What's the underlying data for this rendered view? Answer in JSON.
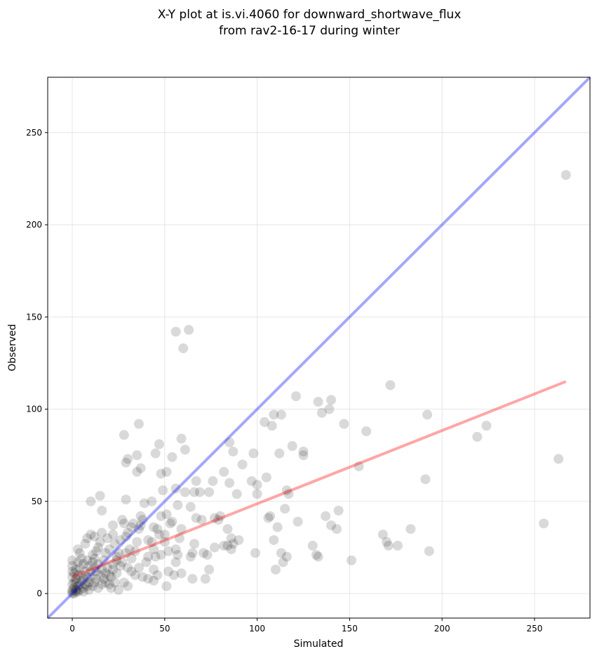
{
  "chart_data": {
    "type": "scatter",
    "title": [
      "X-Y plot at is.vi.4060 for downward_shortwave_flux",
      "from rav2-16-17 during winter"
    ],
    "xlabel": "Simulated",
    "ylabel": "Observed",
    "xlim": [
      -13.3,
      280
    ],
    "ylim": [
      -13.3,
      280
    ],
    "xticks": [
      0,
      50,
      100,
      150,
      200,
      250
    ],
    "yticks": [
      0,
      50,
      100,
      150,
      200,
      250
    ],
    "grid": true,
    "colors": {
      "points": "#000000",
      "identity": "#0000ff",
      "fit": "#ff0000"
    },
    "identity_line": {
      "slope": 1,
      "intercept": 0
    },
    "fit_line": {
      "slope": 0.397,
      "intercept": 9,
      "x_range": [
        0,
        267
      ]
    },
    "points": [
      [
        267,
        227
      ],
      [
        56,
        142
      ],
      [
        63,
        143
      ],
      [
        60,
        133
      ],
      [
        172,
        113
      ],
      [
        121,
        107
      ],
      [
        140,
        105
      ],
      [
        133,
        104
      ],
      [
        139,
        100
      ],
      [
        135,
        98
      ],
      [
        109,
        97
      ],
      [
        113,
        97
      ],
      [
        104,
        93
      ],
      [
        108,
        91
      ],
      [
        192,
        97
      ],
      [
        147,
        92
      ],
      [
        159,
        88
      ],
      [
        219,
        85
      ],
      [
        224,
        91
      ],
      [
        263,
        73
      ],
      [
        255,
        38
      ],
      [
        28,
        86
      ],
      [
        36,
        92
      ],
      [
        47,
        81
      ],
      [
        59,
        84
      ],
      [
        61,
        78
      ],
      [
        85,
        82
      ],
      [
        87,
        77
      ],
      [
        98,
        76
      ],
      [
        119,
        80
      ],
      [
        125,
        77
      ],
      [
        125,
        75
      ],
      [
        112,
        76
      ],
      [
        155,
        69
      ],
      [
        92,
        70
      ],
      [
        30,
        73
      ],
      [
        29,
        71
      ],
      [
        35,
        75
      ],
      [
        35,
        66
      ],
      [
        37,
        68
      ],
      [
        54,
        74
      ],
      [
        45,
        76
      ],
      [
        82,
        66
      ],
      [
        85,
        60
      ],
      [
        97,
        61
      ],
      [
        100,
        59
      ],
      [
        100,
        54
      ],
      [
        89,
        54
      ],
      [
        105,
        63
      ],
      [
        191,
        62
      ],
      [
        66,
        55
      ],
      [
        69,
        55
      ],
      [
        67,
        61
      ],
      [
        76,
        61
      ],
      [
        56,
        57
      ],
      [
        51,
        66
      ],
      [
        48,
        65
      ],
      [
        49,
        56
      ],
      [
        61,
        55
      ],
      [
        57,
        48
      ],
      [
        64,
        47
      ],
      [
        74,
        55
      ],
      [
        29,
        51
      ],
      [
        16,
        45
      ],
      [
        10,
        50
      ],
      [
        15,
        53
      ],
      [
        106,
        41
      ],
      [
        107,
        42
      ],
      [
        116,
        56
      ],
      [
        117,
        54
      ],
      [
        115,
        46
      ],
      [
        122,
        39
      ],
      [
        137,
        42
      ],
      [
        144,
        45
      ],
      [
        140,
        37
      ],
      [
        143,
        35
      ],
      [
        130,
        26
      ],
      [
        132,
        21
      ],
      [
        133,
        20
      ],
      [
        151,
        18
      ],
      [
        168,
        32
      ],
      [
        170,
        28
      ],
      [
        171,
        26
      ],
      [
        176,
        26
      ],
      [
        183,
        35
      ],
      [
        193,
        23
      ],
      [
        99,
        22
      ],
      [
        109,
        29
      ],
      [
        110,
        13
      ],
      [
        113,
        22
      ],
      [
        114,
        17
      ],
      [
        116,
        20
      ],
      [
        111,
        36
      ],
      [
        77,
        41
      ],
      [
        80,
        42
      ],
      [
        79,
        40
      ],
      [
        84,
        35
      ],
      [
        86,
        30
      ],
      [
        84,
        26
      ],
      [
        87,
        27
      ],
      [
        86,
        24
      ],
      [
        90,
        29
      ],
      [
        82,
        26
      ],
      [
        77,
        25
      ],
      [
        73,
        21
      ],
      [
        74,
        13
      ],
      [
        72,
        8
      ],
      [
        65,
        8
      ],
      [
        64,
        20
      ],
      [
        65,
        22
      ],
      [
        66,
        27
      ],
      [
        67,
        41
      ],
      [
        70,
        40
      ],
      [
        71,
        22
      ],
      [
        59,
        35
      ],
      [
        58,
        30
      ],
      [
        59,
        11
      ],
      [
        56,
        17
      ],
      [
        54,
        39
      ],
      [
        53,
        38
      ],
      [
        51,
        43
      ],
      [
        48,
        42
      ],
      [
        47,
        32
      ],
      [
        50,
        32
      ],
      [
        46,
        35
      ],
      [
        44,
        36
      ],
      [
        41,
        29
      ],
      [
        43,
        28
      ],
      [
        37,
        42
      ],
      [
        38,
        40
      ],
      [
        39,
        49
      ],
      [
        43,
        50
      ],
      [
        44,
        24
      ],
      [
        45,
        20
      ],
      [
        41,
        20
      ],
      [
        40,
        17
      ],
      [
        44,
        13
      ],
      [
        46,
        10
      ],
      [
        48,
        21
      ],
      [
        51,
        4
      ],
      [
        55,
        10
      ],
      [
        52,
        12
      ],
      [
        50,
        28
      ],
      [
        56,
        24
      ],
      [
        57,
        21
      ],
      [
        52,
        23
      ],
      [
        36,
        35
      ],
      [
        35,
        28
      ],
      [
        37,
        37
      ],
      [
        33,
        38
      ],
      [
        32,
        36
      ],
      [
        30,
        33
      ],
      [
        31,
        24
      ],
      [
        27,
        40
      ],
      [
        28,
        38
      ],
      [
        29,
        31
      ],
      [
        26,
        29
      ],
      [
        25,
        22
      ],
      [
        24,
        18
      ],
      [
        22,
        13
      ],
      [
        23,
        27
      ],
      [
        22,
        32
      ],
      [
        22,
        37
      ],
      [
        19,
        30
      ],
      [
        20,
        24
      ],
      [
        18,
        22
      ],
      [
        17,
        18
      ],
      [
        16,
        33
      ],
      [
        15,
        28
      ],
      [
        14,
        25
      ],
      [
        12,
        31
      ],
      [
        10,
        32
      ],
      [
        8,
        30
      ],
      [
        7,
        27
      ],
      [
        12,
        19
      ],
      [
        11,
        17
      ],
      [
        9,
        15
      ],
      [
        7,
        12
      ],
      [
        13,
        12
      ],
      [
        15,
        10
      ],
      [
        17,
        8
      ],
      [
        20,
        5
      ],
      [
        21,
        3
      ],
      [
        25,
        2
      ],
      [
        28,
        6
      ],
      [
        30,
        4
      ],
      [
        32,
        12
      ],
      [
        34,
        10
      ],
      [
        36,
        14
      ],
      [
        38,
        9
      ],
      [
        41,
        8
      ],
      [
        44,
        7
      ],
      [
        8,
        18
      ],
      [
        6,
        16
      ],
      [
        4,
        14
      ],
      [
        3,
        10
      ],
      [
        2,
        8
      ],
      [
        1,
        6
      ],
      [
        1,
        3
      ],
      [
        2,
        2
      ],
      [
        3,
        4
      ],
      [
        4,
        5
      ],
      [
        5,
        7
      ],
      [
        6,
        3
      ],
      [
        7,
        5
      ],
      [
        9,
        6
      ],
      [
        10,
        9
      ],
      [
        11,
        4
      ],
      [
        12,
        6
      ],
      [
        13,
        8
      ],
      [
        14,
        3
      ],
      [
        16,
        5
      ],
      [
        18,
        11
      ],
      [
        19,
        14
      ],
      [
        21,
        9
      ],
      [
        23,
        6
      ],
      [
        24,
        11
      ],
      [
        26,
        15
      ],
      [
        0,
        0
      ],
      [
        0,
        1
      ],
      [
        1,
        0
      ],
      [
        0,
        2
      ],
      [
        2,
        1
      ],
      [
        3,
        1
      ],
      [
        0,
        5
      ],
      [
        0,
        9
      ],
      [
        0,
        12
      ],
      [
        0,
        15
      ],
      [
        0,
        18
      ],
      [
        1,
        11
      ],
      [
        2,
        13
      ],
      [
        3,
        17
      ],
      [
        5,
        19
      ],
      [
        4,
        22
      ],
      [
        3,
        24
      ],
      [
        5,
        10
      ],
      [
        6,
        8
      ],
      [
        8,
        4
      ],
      [
        9,
        2
      ],
      [
        10,
        12
      ],
      [
        12,
        14
      ],
      [
        14,
        16
      ],
      [
        16,
        13
      ],
      [
        18,
        6
      ],
      [
        20,
        10
      ],
      [
        22,
        16
      ],
      [
        24,
        20
      ],
      [
        27,
        17
      ],
      [
        29,
        22
      ],
      [
        30,
        14
      ],
      [
        32,
        19
      ],
      [
        34,
        23
      ],
      [
        6,
        1
      ],
      [
        4,
        2
      ],
      [
        8,
        9
      ],
      [
        11,
        21
      ],
      [
        13,
        23
      ],
      [
        2,
        6
      ]
    ]
  }
}
